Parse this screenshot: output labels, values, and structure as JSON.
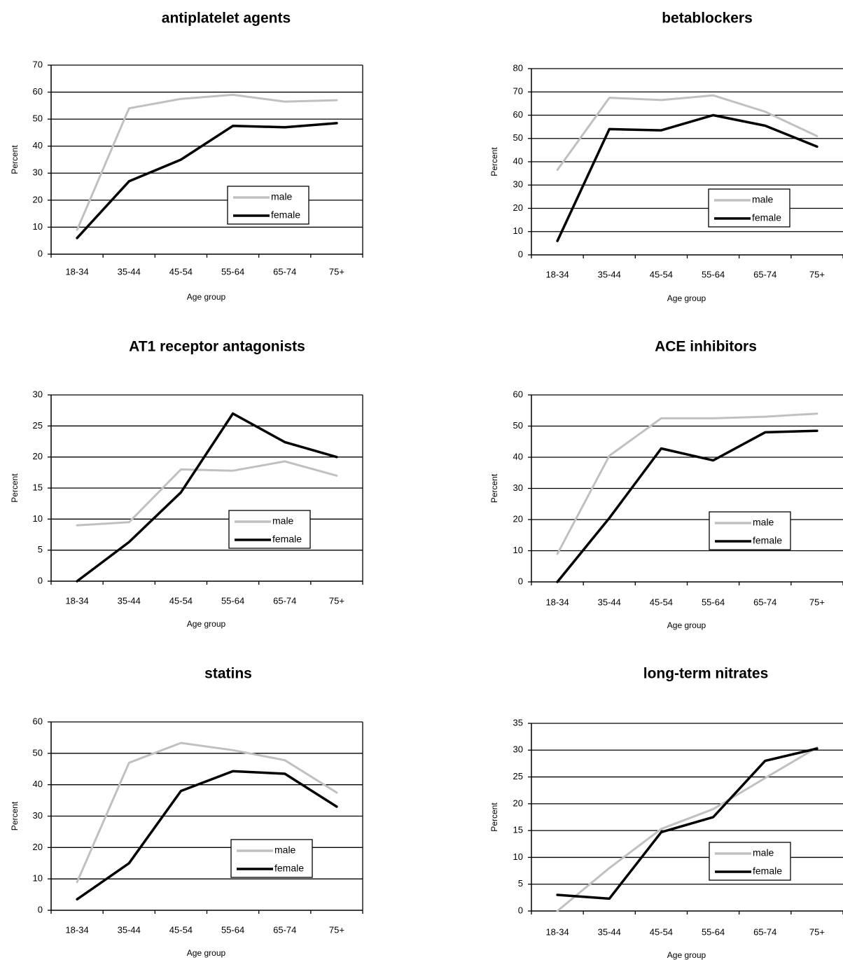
{
  "colors": {
    "male": "#c0c0c0",
    "female": "#000000",
    "grid": "#000000"
  },
  "chart_data": [
    {
      "type": "line",
      "title": "antiplatelet agents",
      "xlabel": "Age group",
      "ylabel": "Percent",
      "categories": [
        "18-34",
        "35-44",
        "45-54",
        "55-64",
        "65-74",
        "75+"
      ],
      "ylim": [
        0,
        70
      ],
      "yticks": [
        0,
        10,
        20,
        30,
        40,
        50,
        60,
        70
      ],
      "grid": true,
      "legend": "center-right",
      "series": [
        {
          "name": "male",
          "values": [
            9,
            54,
            57.5,
            59,
            56.5,
            57
          ]
        },
        {
          "name": "female",
          "values": [
            6,
            27,
            35,
            47.5,
            47,
            48.5
          ]
        }
      ]
    },
    {
      "type": "line",
      "title": "betablockers",
      "xlabel": "Age group",
      "ylabel": "Percent",
      "categories": [
        "18-34",
        "35-44",
        "45-54",
        "55-64",
        "65-74",
        "75+"
      ],
      "ylim": [
        0,
        80
      ],
      "yticks": [
        0,
        10,
        20,
        30,
        40,
        50,
        60,
        70,
        80
      ],
      "grid": true,
      "legend": "center-right",
      "series": [
        {
          "name": "male",
          "values": [
            36.5,
            67.5,
            66.5,
            68.5,
            61.5,
            51
          ]
        },
        {
          "name": "female",
          "values": [
            6,
            54,
            53.5,
            60,
            55.5,
            46.5
          ]
        }
      ]
    },
    {
      "type": "line",
      "title": "AT1 receptor antagonists",
      "xlabel": "Age group",
      "ylabel": "Percent",
      "categories": [
        "18-34",
        "35-44",
        "45-54",
        "55-64",
        "65-74",
        "75+"
      ],
      "ylim": [
        0,
        30
      ],
      "yticks": [
        0,
        5,
        10,
        15,
        20,
        25,
        30
      ],
      "grid": true,
      "legend": "center-right",
      "series": [
        {
          "name": "male",
          "values": [
            9,
            9.5,
            18,
            17.8,
            19.3,
            17
          ]
        },
        {
          "name": "female",
          "values": [
            0,
            6.3,
            14.3,
            27,
            22.4,
            20
          ]
        }
      ]
    },
    {
      "type": "line",
      "title": "ACE inhibitors",
      "xlabel": "Age group",
      "ylabel": "Percent",
      "categories": [
        "18-34",
        "35-44",
        "45-54",
        "55-64",
        "65-74",
        "75+"
      ],
      "ylim": [
        0,
        60
      ],
      "yticks": [
        0,
        10,
        20,
        30,
        40,
        50,
        60
      ],
      "grid": true,
      "legend": "center-right",
      "series": [
        {
          "name": "male",
          "values": [
            9,
            40.5,
            52.5,
            52.5,
            53,
            54
          ]
        },
        {
          "name": "female",
          "values": [
            0,
            20.5,
            42.8,
            39,
            48,
            48.5
          ]
        }
      ]
    },
    {
      "type": "line",
      "title": "statins",
      "xlabel": "Age group",
      "ylabel": "Percent",
      "categories": [
        "18-34",
        "35-44",
        "45-54",
        "55-64",
        "65-74",
        "75+"
      ],
      "ylim": [
        0,
        60
      ],
      "yticks": [
        0,
        10,
        20,
        30,
        40,
        50,
        60
      ],
      "grid": true,
      "legend": "center-right",
      "series": [
        {
          "name": "male",
          "values": [
            9,
            47,
            53.3,
            51,
            47.8,
            37.5
          ]
        },
        {
          "name": "female",
          "values": [
            3.5,
            15,
            38,
            44.3,
            43.5,
            33
          ]
        }
      ]
    },
    {
      "type": "line",
      "title": "long-term nitrates",
      "xlabel": "Age group",
      "ylabel": "Percent",
      "categories": [
        "18-34",
        "35-44",
        "45-54",
        "55-64",
        "65-74",
        "75+"
      ],
      "ylim": [
        0,
        35
      ],
      "yticks": [
        0,
        5,
        10,
        15,
        20,
        25,
        30,
        35
      ],
      "grid": true,
      "legend": "center-right",
      "series": [
        {
          "name": "male",
          "values": [
            0,
            8,
            15.3,
            19,
            24.8,
            30.5
          ]
        },
        {
          "name": "female",
          "values": [
            3,
            2.3,
            14.7,
            17.5,
            28,
            30.3
          ]
        }
      ]
    }
  ]
}
